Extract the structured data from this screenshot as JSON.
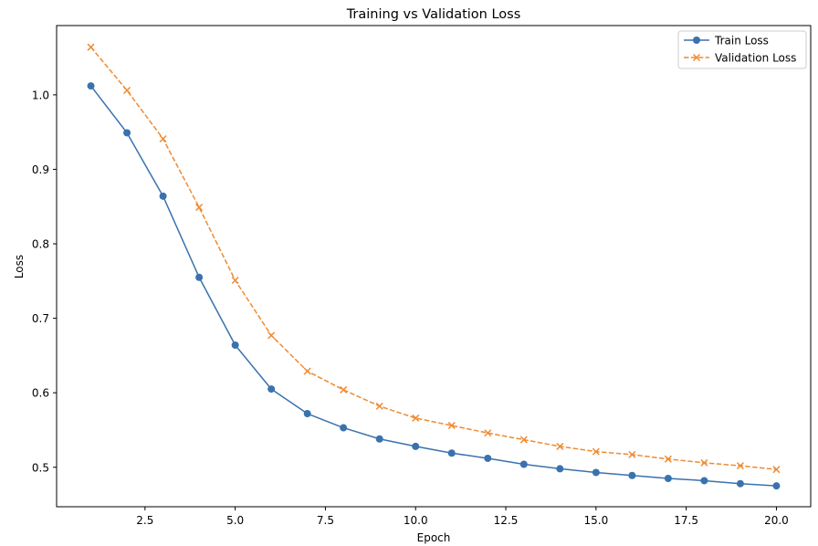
{
  "chart_data": {
    "type": "line",
    "title": "Training vs Validation Loss",
    "xlabel": "Epoch",
    "ylabel": "Loss",
    "xlim": [
      0.05,
      20.95
    ],
    "ylim": [
      0.447,
      1.093
    ],
    "xticks": [
      "2.5",
      "5.0",
      "7.5",
      "10.0",
      "12.5",
      "15.0",
      "17.5",
      "20.0"
    ],
    "yticks": [
      "0.5",
      "0.6",
      "0.7",
      "0.8",
      "0.9",
      "1.0"
    ],
    "grid": false,
    "legend": "upper right",
    "x": [
      1,
      2,
      3,
      4,
      5,
      6,
      7,
      8,
      9,
      10,
      11,
      12,
      13,
      14,
      15,
      16,
      17,
      18,
      19,
      20
    ],
    "series": [
      {
        "name": "Train Loss",
        "color": "#3a72ad",
        "style": "solid",
        "marker": "circle",
        "values": [
          1.012,
          0.949,
          0.864,
          0.755,
          0.664,
          0.605,
          0.572,
          0.553,
          0.538,
          0.528,
          0.519,
          0.512,
          0.504,
          0.498,
          0.493,
          0.489,
          0.485,
          0.482,
          0.478,
          0.475
        ]
      },
      {
        "name": "Validation Loss",
        "color": "#ee8b32",
        "style": "dashed",
        "marker": "x",
        "values": [
          1.064,
          1.006,
          0.941,
          0.849,
          0.751,
          0.677,
          0.629,
          0.604,
          0.582,
          0.566,
          0.556,
          0.546,
          0.537,
          0.528,
          0.521,
          0.517,
          0.511,
          0.506,
          0.502,
          0.497
        ]
      }
    ]
  }
}
